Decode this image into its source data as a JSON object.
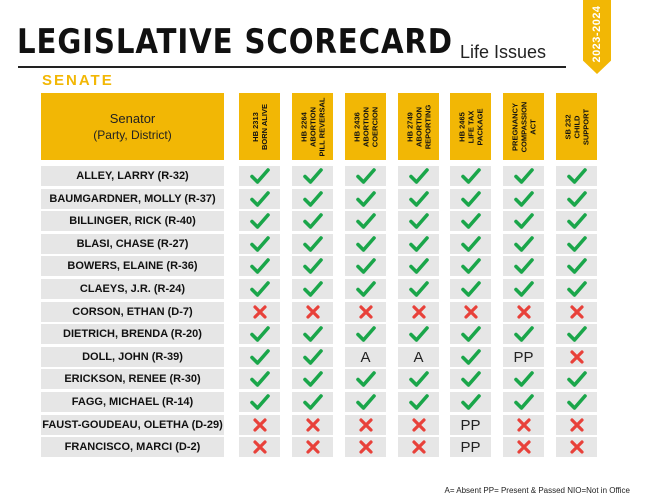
{
  "header": {
    "title": "LEGISLATIVE SCORECARD",
    "subtitle": "Life Issues",
    "year_range": "2023-2024",
    "chamber": "SENATE"
  },
  "table": {
    "senator_header": "Senator",
    "senator_subheader": "(Party, District)",
    "bills": [
      "HB 2313\nBORN ALIVE",
      "HB 2264\nABORTION\nPILL REVERSAL",
      "HB 2436\nABORTION\nCOERCION",
      "HB 2749\nABORTION\nREPORTING",
      "HB 2465\nLIFE TAX\nPACKAGE",
      "PREGNANCY\nCOMPASSION\nACT",
      "SB 232\nCHILD\nSUPPORT"
    ],
    "rows": [
      {
        "name": "ALLEY, LARRY (R-32)",
        "votes": [
          "check",
          "check",
          "check",
          "check",
          "check",
          "check",
          "check"
        ]
      },
      {
        "name": "BAUMGARDNER, MOLLY (R-37)",
        "votes": [
          "check",
          "check",
          "check",
          "check",
          "check",
          "check",
          "check"
        ]
      },
      {
        "name": "BILLINGER, RICK (R-40)",
        "votes": [
          "check",
          "check",
          "check",
          "check",
          "check",
          "check",
          "check"
        ]
      },
      {
        "name": "BLASI, CHASE (R-27)",
        "votes": [
          "check",
          "check",
          "check",
          "check",
          "check",
          "check",
          "check"
        ]
      },
      {
        "name": "BOWERS, ELAINE (R-36)",
        "votes": [
          "check",
          "check",
          "check",
          "check",
          "check",
          "check",
          "check"
        ]
      },
      {
        "name": "CLAEYS, J.R. (R-24)",
        "votes": [
          "check",
          "check",
          "check",
          "check",
          "check",
          "check",
          "check"
        ]
      },
      {
        "name": "CORSON, ETHAN (D-7)",
        "votes": [
          "x",
          "x",
          "x",
          "x",
          "x",
          "x",
          "x"
        ]
      },
      {
        "name": "DIETRICH, BRENDA (R-20)",
        "votes": [
          "check",
          "check",
          "check",
          "check",
          "check",
          "check",
          "check"
        ]
      },
      {
        "name": "DOLL, JOHN (R-39)",
        "votes": [
          "check",
          "check",
          "A",
          "A",
          "check",
          "PP",
          "x"
        ]
      },
      {
        "name": "ERICKSON, RENEE (R-30)",
        "votes": [
          "check",
          "check",
          "check",
          "check",
          "check",
          "check",
          "check"
        ]
      },
      {
        "name": "FAGG, MICHAEL (R-14)",
        "votes": [
          "check",
          "check",
          "check",
          "check",
          "check",
          "check",
          "check"
        ]
      },
      {
        "name": "FAUST-GOUDEAU, OLETHA (D-29)",
        "votes": [
          "x",
          "x",
          "x",
          "x",
          "PP",
          "x",
          "x"
        ]
      },
      {
        "name": "FRANCISCO, MARCI (D-2)",
        "votes": [
          "x",
          "x",
          "x",
          "x",
          "PP",
          "x",
          "x"
        ]
      }
    ]
  },
  "legend": "A= Absent  PP= Present & Passed  NIO=Not in Office",
  "colors": {
    "accent": "#f2b705",
    "check": "#1aa64a",
    "cross": "#e8413a",
    "row_bg": "#e6e6e6"
  }
}
